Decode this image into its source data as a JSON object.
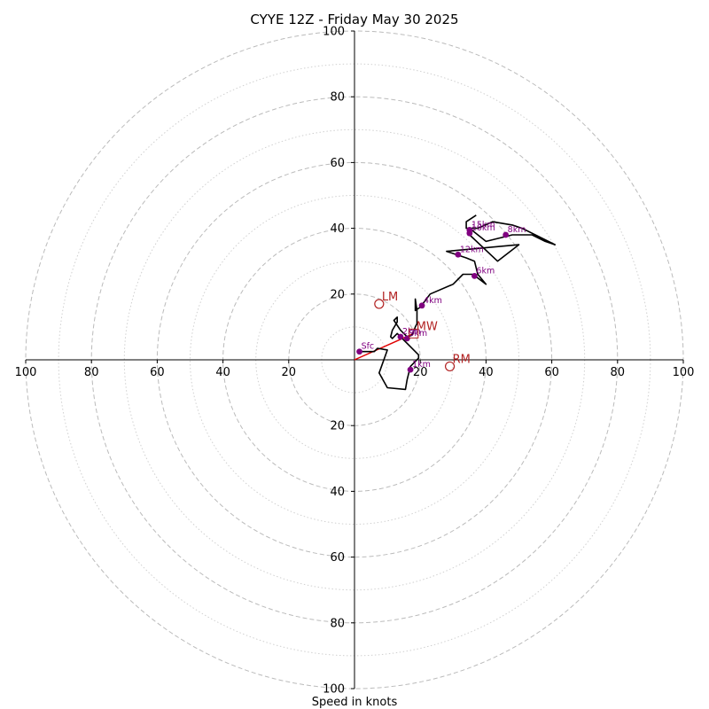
{
  "chart_data": {
    "type": "scatter",
    "subtype": "hodograph",
    "title": "CYYE 12Z - Friday May 30 2025",
    "xlabel": "Speed in knots",
    "ylabel": "",
    "range": [
      -100,
      100
    ],
    "ticks": [
      "100",
      "80",
      "60",
      "40",
      "20",
      "20",
      "40",
      "60",
      "80",
      "100"
    ],
    "tick_values": [
      -100,
      -80,
      -60,
      -40,
      -20,
      20,
      40,
      60,
      80,
      100
    ],
    "rings_major": [
      20,
      40,
      60,
      80,
      100
    ],
    "rings_minor": [
      10,
      30,
      50,
      70,
      90
    ],
    "grid": true,
    "colors": {
      "trace": "#000000",
      "points": "#800080",
      "motion": "#b22222",
      "mean_wind_vector": "#e00000",
      "grid": "#bbbbbb"
    },
    "hodograph_trace": [
      [
        1.5,
        2.5
      ],
      [
        6,
        2.5
      ],
      [
        7,
        3.5
      ],
      [
        10,
        3
      ],
      [
        7.5,
        -4
      ],
      [
        10,
        -8.5
      ],
      [
        15.5,
        -9
      ],
      [
        16,
        -6
      ],
      [
        17,
        -2
      ],
      [
        19.5,
        0.5
      ],
      [
        19.5,
        1.5
      ],
      [
        17,
        4
      ],
      [
        15,
        6
      ],
      [
        13,
        8
      ],
      [
        11.5,
        6.5
      ],
      [
        11,
        7
      ],
      [
        11.5,
        9
      ],
      [
        13,
        11.5
      ],
      [
        13,
        13
      ],
      [
        12,
        12
      ],
      [
        14,
        9
      ],
      [
        16,
        7
      ],
      [
        17.5,
        7.5
      ],
      [
        18.5,
        10
      ],
      [
        19,
        11
      ],
      [
        19,
        15
      ],
      [
        18.5,
        18.5
      ],
      [
        18.5,
        15
      ],
      [
        20,
        16
      ],
      [
        23,
        20
      ],
      [
        30,
        23
      ],
      [
        33,
        26
      ],
      [
        36,
        26
      ],
      [
        40,
        23
      ],
      [
        37.5,
        26
      ],
      [
        36.5,
        30
      ],
      [
        34,
        31
      ],
      [
        28,
        33
      ],
      [
        50,
        35
      ],
      [
        43.5,
        30
      ],
      [
        35,
        38
      ],
      [
        35,
        40
      ],
      [
        40,
        36
      ],
      [
        48,
        38
      ],
      [
        54,
        38
      ],
      [
        58,
        36
      ],
      [
        61,
        35
      ],
      [
        57,
        37
      ],
      [
        51,
        40
      ],
      [
        48,
        41
      ],
      [
        42,
        42
      ],
      [
        37.5,
        40
      ],
      [
        34,
        40
      ],
      [
        34,
        42
      ],
      [
        37,
        44
      ]
    ],
    "labeled_points": [
      {
        "label": "Sfc",
        "x": 1.5,
        "y": 2.5
      },
      {
        "label": "1km",
        "x": 17,
        "y": -3
      },
      {
        "label": "2km",
        "x": 14,
        "y": 7
      },
      {
        "label": "3km",
        "x": 16,
        "y": 6.5
      },
      {
        "label": "4km",
        "x": 20.5,
        "y": 16.5
      },
      {
        "label": "6km",
        "x": 36.5,
        "y": 25.5
      },
      {
        "label": "8km",
        "x": 46,
        "y": 38
      },
      {
        "label": "10km",
        "x": 35,
        "y": 38.5
      },
      {
        "label": "12km",
        "x": 31.5,
        "y": 32
      },
      {
        "label": "15km",
        "x": 35,
        "y": 39.5
      }
    ],
    "storm_motion": [
      {
        "label": "LM",
        "x": 7.5,
        "y": 17,
        "marker": "circle"
      },
      {
        "label": "RM",
        "x": 29,
        "y": -2,
        "marker": "circle"
      },
      {
        "label": "MW",
        "x": 18,
        "y": 8,
        "marker": "square"
      }
    ],
    "mean_wind_vector": {
      "x": 18,
      "y": 8
    }
  }
}
